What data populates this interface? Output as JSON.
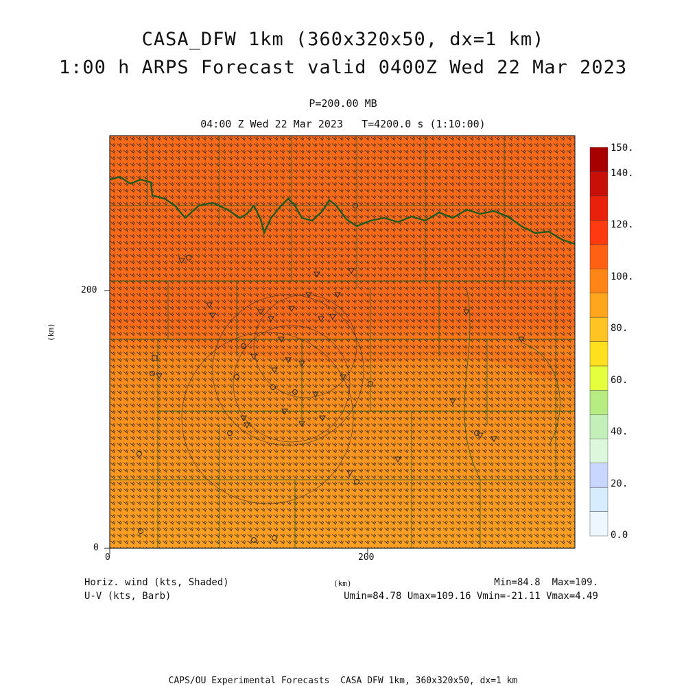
{
  "header": {
    "title_line1": "CASA_DFW 1km (360x320x50, dx=1 km)",
    "title_line2": "1:00 h ARPS Forecast valid 0400Z Wed 22 Mar 2023",
    "pressure_level": "P=200.00 MB",
    "time_line": "04:00 Z Wed 22 Mar 2023   T=4200.0 s (1:10:00)"
  },
  "axes": {
    "y_label": "(km)",
    "x_label": "(km)",
    "x_ticks": [
      "0",
      "200"
    ],
    "y_ticks": [
      "0",
      "200"
    ],
    "x_range_km": [
      0,
      360
    ],
    "y_range_km": [
      0,
      320
    ]
  },
  "colorbar": {
    "labels": [
      "150.",
      "140.",
      "120.",
      "100.",
      "80.",
      "60.",
      "40.",
      "20.",
      "0.0"
    ],
    "levels": [
      0,
      10,
      20,
      30,
      40,
      50,
      60,
      70,
      80,
      90,
      100,
      110,
      120,
      130,
      140,
      150
    ],
    "colors": [
      "#eef7ff",
      "#d8ecff",
      "#c9d6ff",
      "#dcf7dc",
      "#c2f0b8",
      "#b6ec82",
      "#e6ff3c",
      "#ffe01e",
      "#ffc424",
      "#ffa61c",
      "#ff8616",
      "#ff6012",
      "#ff3a10",
      "#e8200c",
      "#c81008",
      "#a80000"
    ]
  },
  "legend": {
    "field_shaded": "Horiz. wind (kts, Shaded)",
    "field_barb": "U-V (kts, Barb)",
    "min_max": "Min=84.8  Max=109.",
    "uv_stats": "Umin=84.78 Umax=109.16 Vmin=-21.11 Vmax=4.49"
  },
  "footer": {
    "credit": "CAPS/OU Experimental Forecasts  CASA DFW 1km, 360x320x50, dx=1 km"
  },
  "map_colors": {
    "field_high": "#ff6a18",
    "field_mid": "#ff8a1a",
    "field_low": "#ffa022",
    "border": "#1e5a1e",
    "barb": "#2a2a2a"
  }
}
